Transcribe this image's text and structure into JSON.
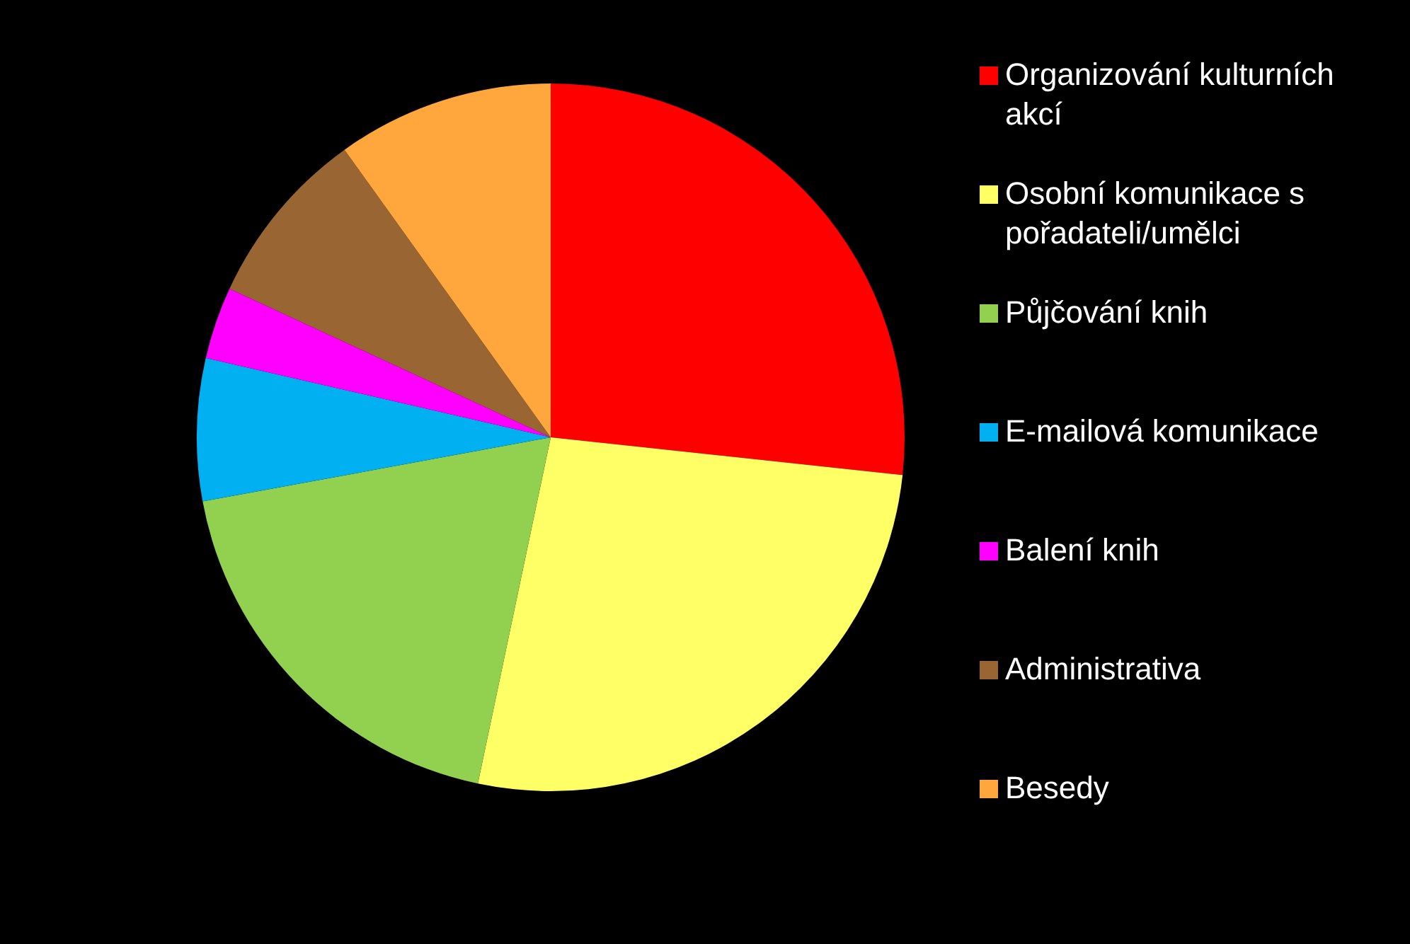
{
  "chart_data": {
    "type": "pie",
    "categories": [
      "Organizování kulturních akcí",
      "Osobní komunikace s pořadateli/umělci",
      "Půjčování knih",
      "E-mailová komunikace",
      "Balení knih",
      "Administrativa",
      "Besedy"
    ],
    "values": [
      26.7,
      26.6,
      18.8,
      6.5,
      3.3,
      8.2,
      9.9
    ],
    "colors": [
      "#ff0000",
      "#ffff66",
      "#92d050",
      "#00b0f0",
      "#ff00ff",
      "#996633",
      "#ffa63c"
    ],
    "legend": "right"
  }
}
